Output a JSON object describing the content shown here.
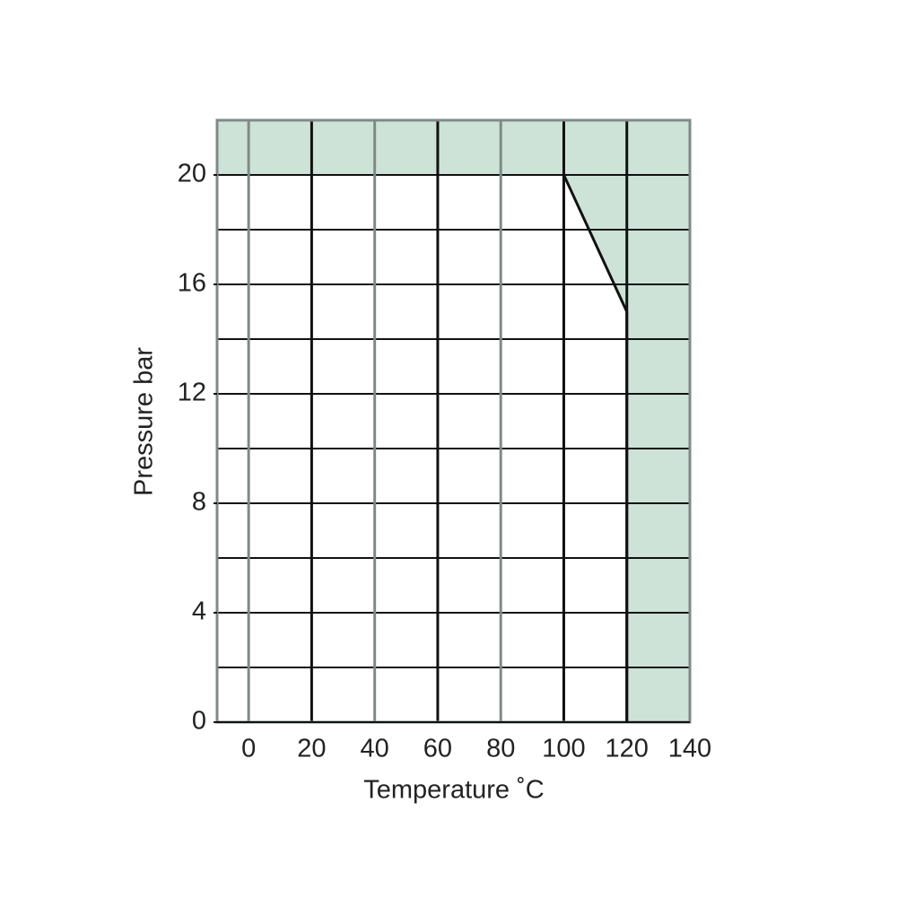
{
  "chart_data": {
    "type": "line",
    "x_label": "Temperature ˚C",
    "y_label": "Pressure bar",
    "xlim": [
      -10,
      140
    ],
    "ylim": [
      0,
      22
    ],
    "xticks": [
      0,
      20,
      40,
      60,
      80,
      100,
      120,
      140
    ],
    "xgrid_colors": [
      "#7f8a88",
      "#111111",
      "#7f8a88",
      "#111111",
      "#7f8a88",
      "#111111",
      "#111111",
      "#7f8a88"
    ],
    "yticks": [
      0,
      4,
      8,
      12,
      16,
      20
    ],
    "ygrid": [
      2,
      4,
      6,
      8,
      10,
      12,
      14,
      16,
      18,
      20
    ],
    "fill_color": "#cde3d8",
    "series": [
      {
        "x": [
          100,
          120,
          120
        ],
        "values": [
          20,
          15,
          0
        ],
        "color": "#111111"
      }
    ]
  }
}
